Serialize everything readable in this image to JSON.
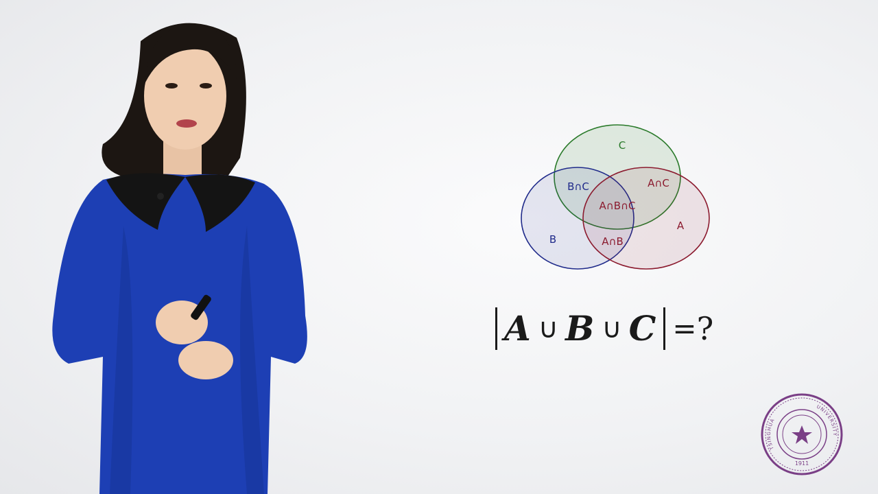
{
  "venn": {
    "set_c": "C",
    "set_a": "A",
    "set_b": "B",
    "b_and_c": "B∩C",
    "a_and_c": "A∩C",
    "a_and_b_and_c": "A∩B∩C",
    "a_and_b": "A∩B",
    "colors": {
      "circle_a": "#8b1a2e",
      "circle_b": "#1f2a8a",
      "circle_c": "#2a7a2a"
    }
  },
  "formula": {
    "var_a": "A",
    "union_1": "∪",
    "var_b": "B",
    "union_2": "∪",
    "var_c": "C",
    "equals": "=",
    "question": "?"
  },
  "seal": {
    "year": "1911",
    "left_text": "TSINGHUA",
    "right_text": "UNIVERSITY",
    "color": "#7a3f86"
  }
}
